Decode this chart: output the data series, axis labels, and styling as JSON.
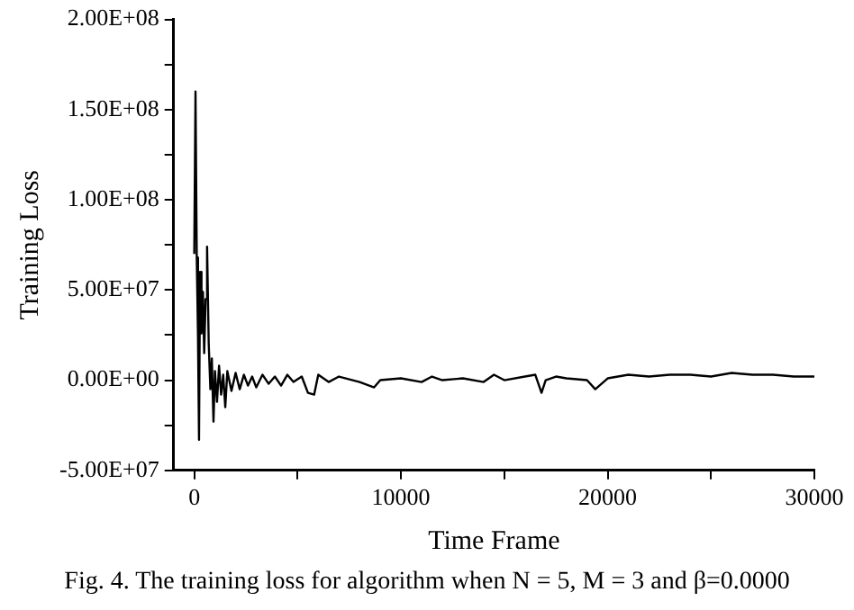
{
  "chart_data": {
    "type": "line",
    "xlabel": "Time Frame",
    "ylabel": "Training Loss",
    "annotations": [
      "Fig. 4.   The training loss for algorithm when N = 5, M = 3 and β=0.0000"
    ],
    "grid": false,
    "legend": false,
    "marker": "none",
    "line_style": "solid",
    "xlim": [
      -1000,
      30000
    ],
    "xticks": [
      0,
      {
        "value": 5000,
        "label": null
      },
      10000,
      {
        "value": 15000,
        "label": null
      },
      20000,
      {
        "value": 25000,
        "label": null
      },
      30000
    ],
    "ylim": [
      -50000000,
      200000000
    ],
    "yticks": [
      {
        "value": -50000000,
        "label": "-5.00E+07"
      },
      {
        "value": -25000000,
        "label": null
      },
      {
        "value": 0,
        "label": "0.00E+00"
      },
      {
        "value": 25000000,
        "label": null
      },
      {
        "value": 50000000,
        "label": "5.00E+07"
      },
      {
        "value": 75000000,
        "label": null
      },
      {
        "value": 100000000,
        "label": "1.00E+08"
      },
      {
        "value": 125000000,
        "label": null
      },
      {
        "value": 150000000,
        "label": "1.50E+08"
      },
      {
        "value": 175000000,
        "label": null
      },
      {
        "value": 200000000,
        "label": "2.00E+08"
      }
    ],
    "series": [
      {
        "color": "#000000",
        "x": [
          0,
          60,
          120,
          180,
          230,
          280,
          350,
          420,
          480,
          550,
          620,
          700,
          780,
          850,
          930,
          1000,
          1100,
          1200,
          1300,
          1400,
          1500,
          1600,
          1800,
          2000,
          2200,
          2400,
          2600,
          2800,
          3000,
          3300,
          3600,
          3900,
          4200,
          4500,
          4800,
          5200,
          5500,
          5800,
          6000,
          6500,
          7000,
          8000,
          8700,
          9000,
          10000,
          11000,
          11500,
          12000,
          13000,
          14000,
          14500,
          15000,
          16000,
          16500,
          16800,
          17000,
          17500,
          18000,
          19000,
          19400,
          20000,
          21000,
          22000,
          23000,
          24000,
          25000,
          26000,
          27000,
          28000,
          29000,
          30000
        ],
        "values": [
          70000000,
          160000000,
          68000000,
          25000000,
          -33000000,
          60000000,
          26000000,
          49000000,
          15000000,
          45000000,
          74000000,
          20000000,
          -5000000,
          12000000,
          -23000000,
          5000000,
          -12000000,
          8000000,
          -8000000,
          3000000,
          -15000000,
          5000000,
          -6000000,
          4000000,
          -5000000,
          3000000,
          -3000000,
          2000000,
          -4000000,
          3000000,
          -2000000,
          2000000,
          -3000000,
          3000000,
          -1000000,
          2000000,
          -7000000,
          -8000000,
          3000000,
          -1000000,
          2000000,
          -1000000,
          -4000000,
          0,
          1000000,
          -1000000,
          2000000,
          0,
          1000000,
          -1000000,
          3000000,
          0,
          2000000,
          3000000,
          -7000000,
          0,
          2000000,
          1000000,
          0,
          -5000000,
          1000000,
          3000000,
          2000000,
          3000000,
          3000000,
          2000000,
          4000000,
          3000000,
          3000000,
          2000000,
          2000000
        ]
      }
    ]
  }
}
